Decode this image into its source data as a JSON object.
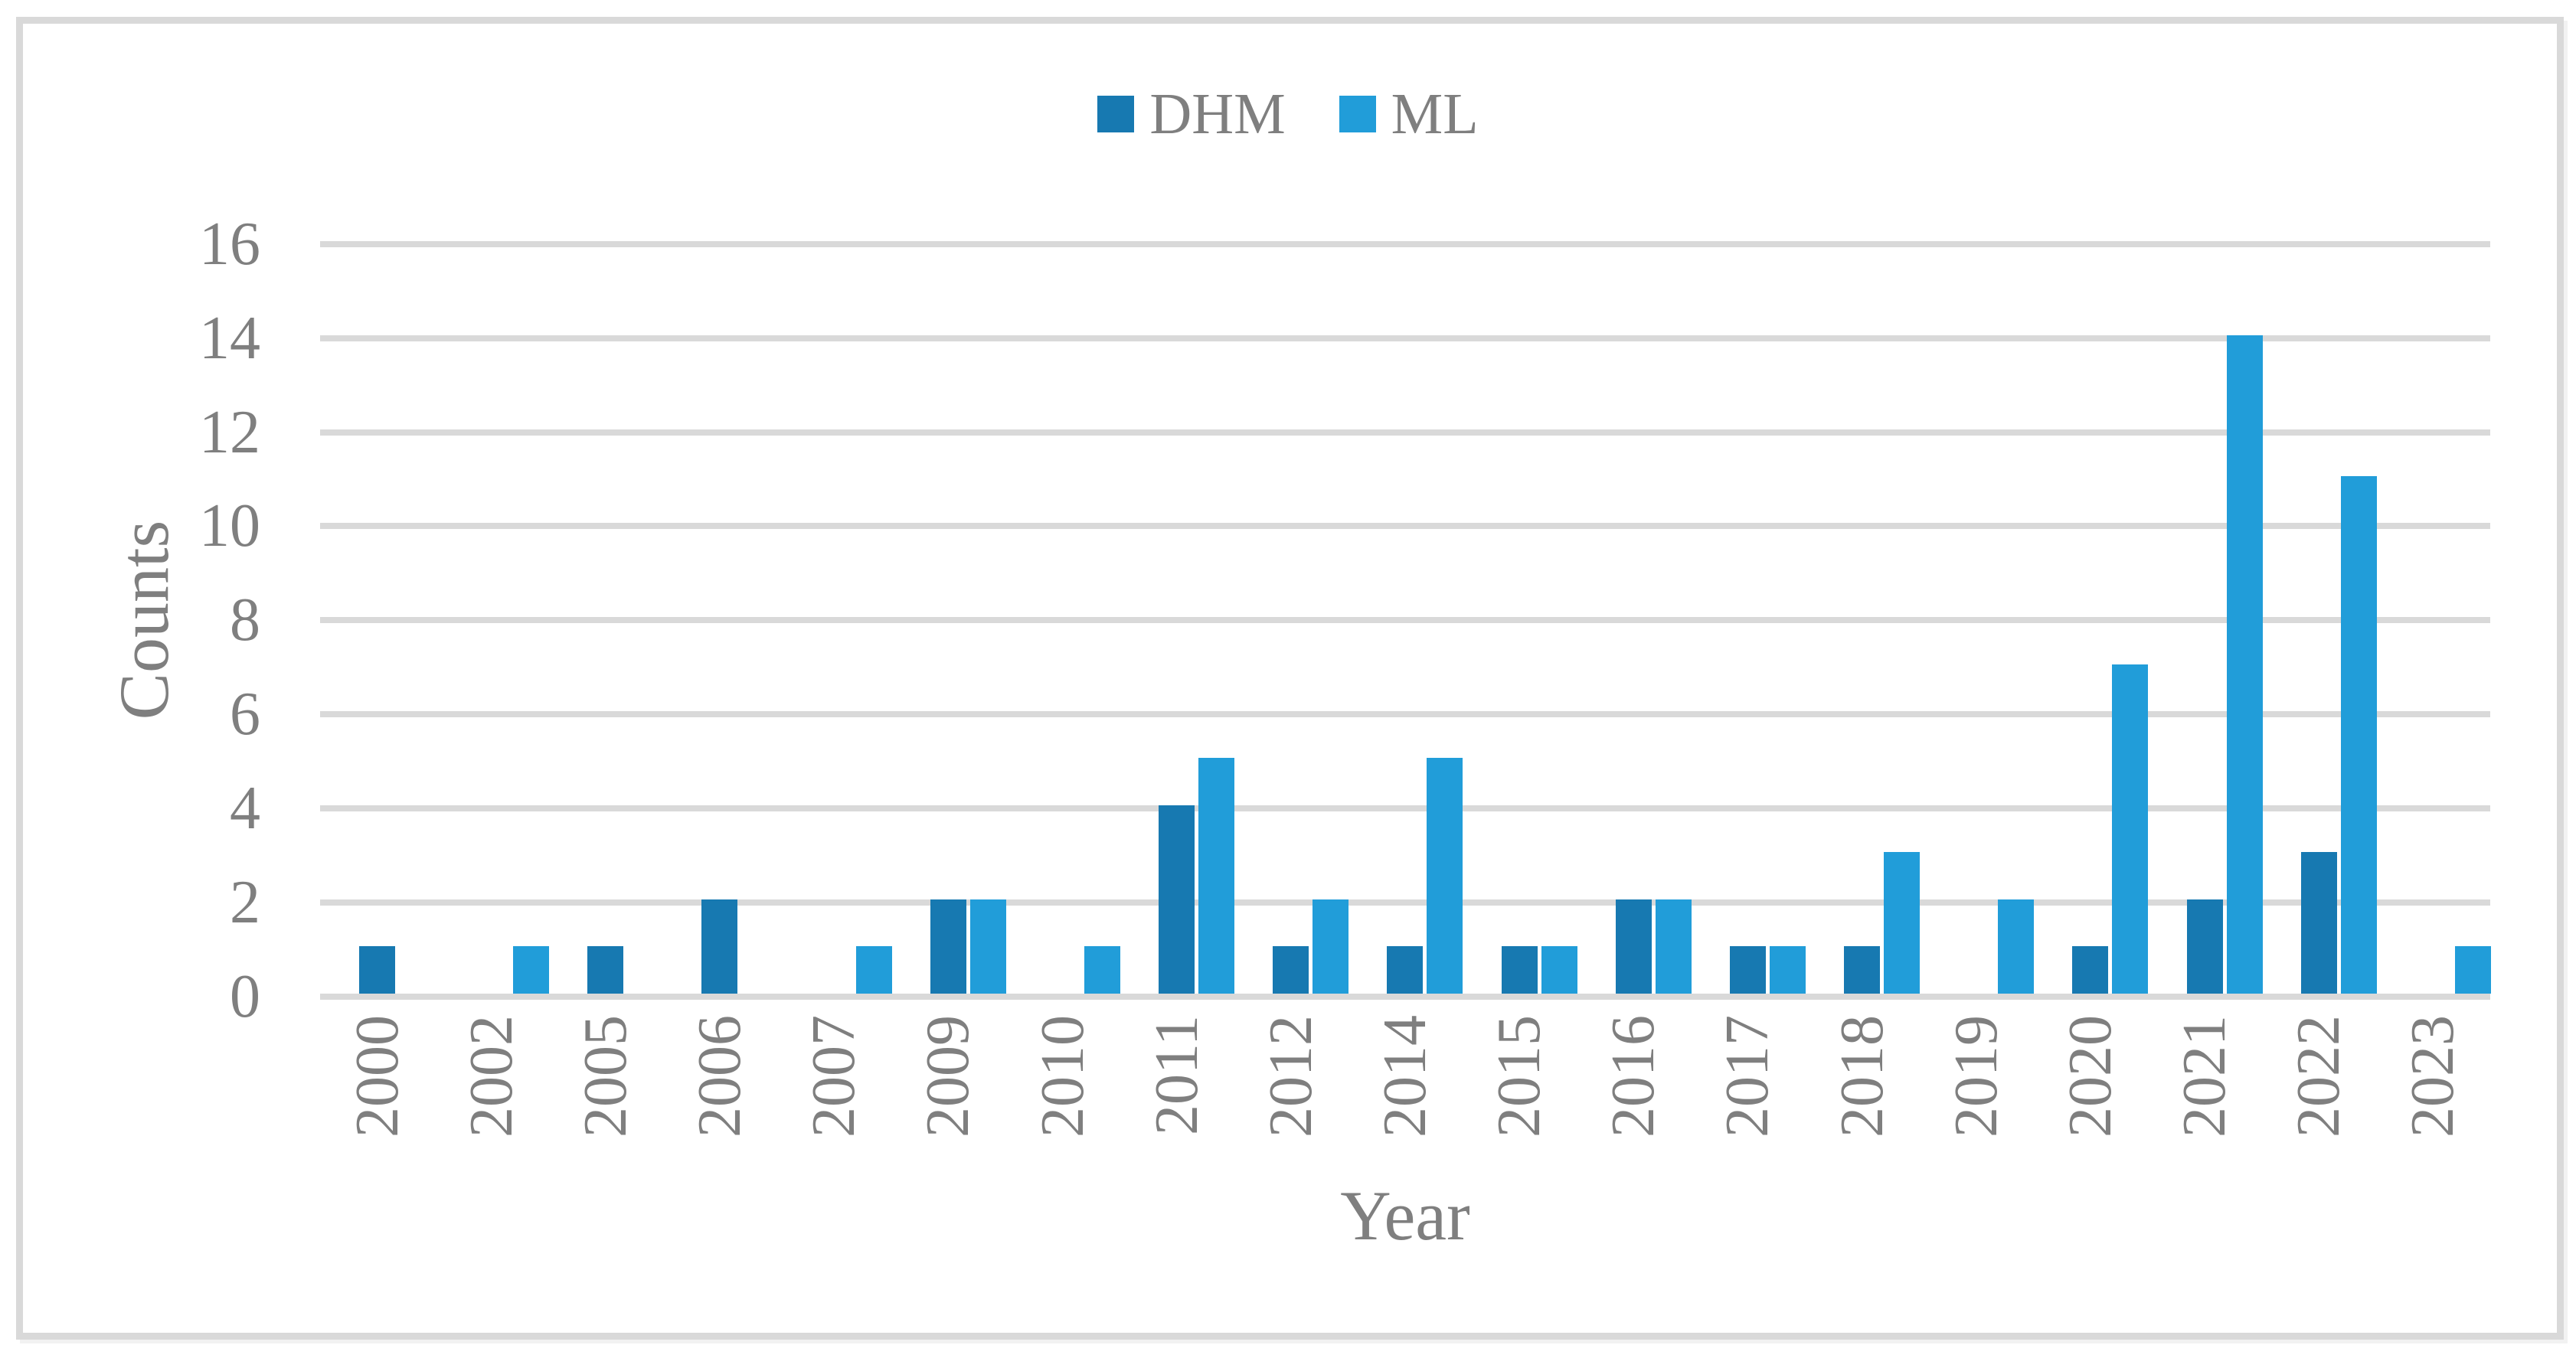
{
  "chart_data": {
    "type": "bar",
    "title": "",
    "xlabel": "Year",
    "ylabel": "Counts",
    "categories": [
      "2000",
      "2002",
      "2005",
      "2006",
      "2007",
      "2009",
      "2010",
      "2011",
      "2012",
      "2014",
      "2015",
      "2016",
      "2017",
      "2018",
      "2019",
      "2020",
      "2021",
      "2022",
      "2023"
    ],
    "series": [
      {
        "name": "DHM",
        "color": "#1779b1",
        "values": [
          1,
          0,
          1,
          2,
          0,
          2,
          0,
          4,
          1,
          1,
          1,
          2,
          1,
          1,
          0,
          1,
          2,
          3,
          0
        ]
      },
      {
        "name": "ML",
        "color": "#219dd9",
        "values": [
          0,
          1,
          0,
          0,
          1,
          2,
          1,
          5,
          2,
          5,
          1,
          2,
          1,
          3,
          2,
          7,
          14,
          11,
          1
        ]
      }
    ],
    "ylim": [
      0,
      16
    ],
    "yticks": [
      0,
      2,
      4,
      6,
      8,
      10,
      12,
      14,
      16
    ],
    "grid": "horizontal",
    "legend_position": "top-center"
  },
  "colors": {
    "background": "#ffffff",
    "frame": "#d9d9d9",
    "gridline": "#d9d9d9",
    "text": "#7f7f7f"
  }
}
